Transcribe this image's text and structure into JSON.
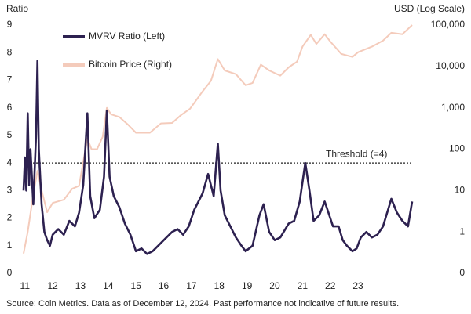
{
  "chart_data": {
    "type": "line",
    "y_label": "Ratio",
    "y2_label": "USD (Log Scale)",
    "source": "Source: Coin Metrics. Data as of December 12, 2024. Past performance not indicative of future results.",
    "threshold": {
      "value": 4,
      "label": "Threshold (=4)"
    },
    "xlim": [
      10.95,
      24.95
    ],
    "xticks": [
      11,
      12,
      13,
      14,
      15,
      16,
      17,
      18,
      19,
      20,
      21,
      22,
      23
    ],
    "ylim": [
      0,
      9
    ],
    "yticks": [
      0,
      1,
      2,
      3,
      4,
      5,
      6,
      7,
      8,
      9
    ],
    "y2lim": [
      0.1,
      100000
    ],
    "y2scale": "log",
    "y2ticks": [
      {
        "value": 0.1,
        "label": "0"
      },
      1,
      10,
      100,
      {
        "value": 1000,
        "label": "1,000"
      },
      {
        "value": 10000,
        "label": "10,000"
      },
      {
        "value": 100000,
        "label": "100,000"
      }
    ],
    "series": [
      {
        "name": "Bitcoin Price (Right)",
        "color": "#f4cbbb",
        "axis": "y2",
        "x": [
          10.95,
          11.1,
          11.3,
          11.45,
          11.6,
          11.8,
          12.0,
          12.4,
          12.7,
          12.95,
          13.25,
          13.4,
          13.6,
          13.8,
          13.95,
          14.1,
          14.4,
          14.7,
          15.0,
          15.5,
          15.9,
          16.3,
          16.6,
          16.95,
          17.4,
          17.7,
          17.95,
          18.2,
          18.6,
          18.95,
          19.2,
          19.5,
          19.8,
          20.2,
          20.5,
          20.8,
          21.0,
          21.3,
          21.5,
          21.8,
          22.0,
          22.4,
          22.8,
          23.0,
          23.5,
          23.9,
          24.2,
          24.6,
          24.95
        ],
        "values": [
          0.3,
          1.0,
          8,
          30,
          10,
          3,
          5,
          6,
          11,
          13,
          180,
          100,
          100,
          200,
          1000,
          700,
          600,
          400,
          250,
          250,
          420,
          430,
          650,
          950,
          2500,
          4500,
          15000,
          8000,
          6500,
          3500,
          4000,
          11000,
          8000,
          6000,
          9500,
          13000,
          30000,
          58000,
          35000,
          60000,
          40000,
          20000,
          17000,
          22000,
          30000,
          42000,
          65000,
          60000,
          100000
        ]
      },
      {
        "name": "MVRV Ratio (Left)",
        "color": "#2d2150",
        "x": [
          10.95,
          11.0,
          11.05,
          11.1,
          11.15,
          11.2,
          11.3,
          11.4,
          11.45,
          11.5,
          11.6,
          11.7,
          11.8,
          11.9,
          12.0,
          12.2,
          12.4,
          12.6,
          12.8,
          12.95,
          13.1,
          13.25,
          13.35,
          13.5,
          13.7,
          13.85,
          13.95,
          14.05,
          14.2,
          14.4,
          14.6,
          14.8,
          15.0,
          15.2,
          15.4,
          15.6,
          15.8,
          16.0,
          16.3,
          16.5,
          16.7,
          16.9,
          17.1,
          17.4,
          17.6,
          17.8,
          17.95,
          18.05,
          18.2,
          18.4,
          18.6,
          18.8,
          18.95,
          19.2,
          19.45,
          19.6,
          19.8,
          20.0,
          20.2,
          20.5,
          20.7,
          20.9,
          21.0,
          21.1,
          21.25,
          21.4,
          21.6,
          21.8,
          21.9,
          22.1,
          22.3,
          22.45,
          22.6,
          22.8,
          22.95,
          23.1,
          23.3,
          23.5,
          23.7,
          23.9,
          24.2,
          24.4,
          24.6,
          24.8,
          24.95
        ],
        "values": [
          3.0,
          4.2,
          3.0,
          5.8,
          3.2,
          4.5,
          2.5,
          5.0,
          7.7,
          4.5,
          2.5,
          1.5,
          1.2,
          1.0,
          1.4,
          1.6,
          1.4,
          1.9,
          1.7,
          2.2,
          3.2,
          5.8,
          2.8,
          2.0,
          2.3,
          3.5,
          5.9,
          3.5,
          2.8,
          2.4,
          1.8,
          1.4,
          0.8,
          0.9,
          0.7,
          0.8,
          1.0,
          1.2,
          1.5,
          1.6,
          1.4,
          1.7,
          2.3,
          2.9,
          3.6,
          2.8,
          4.7,
          3.0,
          2.1,
          1.7,
          1.3,
          1.0,
          0.8,
          1.0,
          2.1,
          2.5,
          1.5,
          1.2,
          1.3,
          1.8,
          1.9,
          2.6,
          3.3,
          4.0,
          3.0,
          1.9,
          2.1,
          2.6,
          2.3,
          1.7,
          1.7,
          1.2,
          1.0,
          0.8,
          0.9,
          1.3,
          1.5,
          1.3,
          1.4,
          1.7,
          2.7,
          2.2,
          1.9,
          1.7,
          2.6
        ]
      }
    ]
  }
}
